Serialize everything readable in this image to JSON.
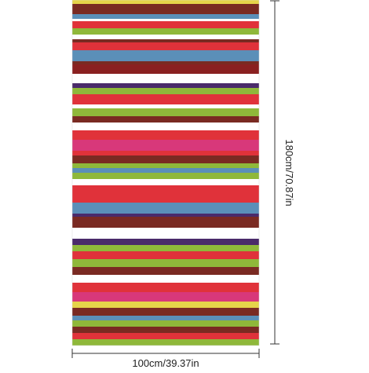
{
  "dimensions": {
    "width": "100cm/39.37in",
    "height": "180cm/70.87in"
  }
}
